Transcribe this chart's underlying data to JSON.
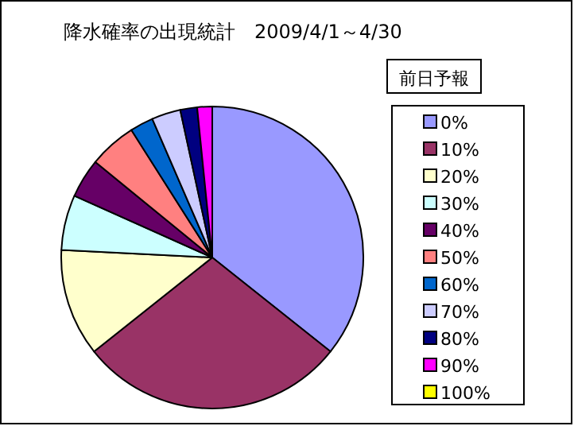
{
  "chart_data": {
    "type": "pie",
    "title": "降水確率の出現統計　2009/4/1～4/30",
    "legend_title": "前日予報",
    "legend": "right",
    "categories": [
      "0%",
      "10%",
      "20%",
      "30%",
      "40%",
      "50%",
      "60%",
      "70%",
      "80%",
      "90%",
      "100%"
    ],
    "values": [
      35.7,
      28.6,
      11.5,
      5.9,
      4.2,
      5.1,
      2.5,
      3.1,
      1.8,
      1.6,
      0
    ],
    "colors": [
      "#9999ff",
      "#993366",
      "#ffffcc",
      "#ccffff",
      "#660066",
      "#ff8080",
      "#0066cc",
      "#ccccff",
      "#000080",
      "#ff00ff",
      "#ffff00"
    ]
  }
}
